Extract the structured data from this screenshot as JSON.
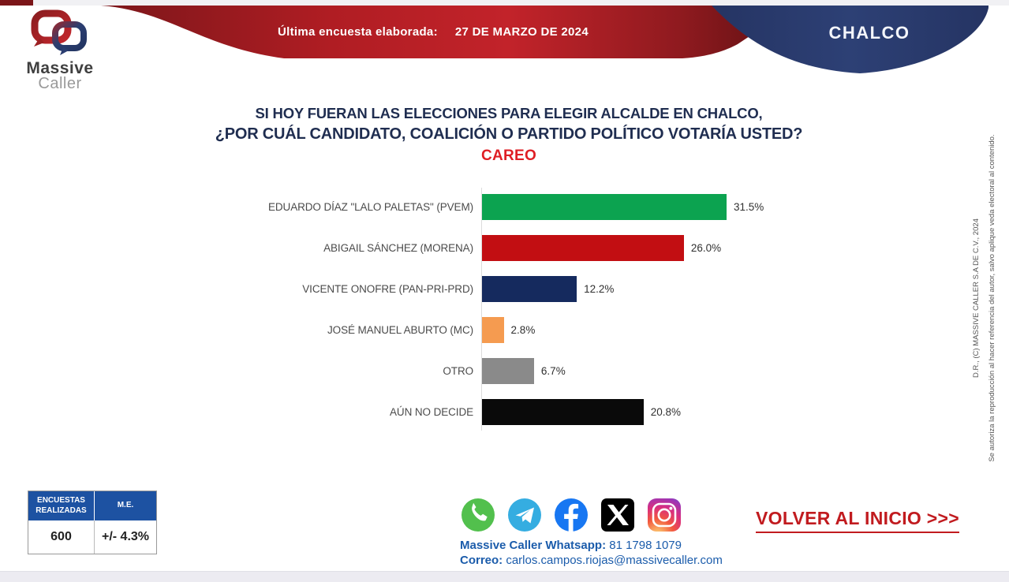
{
  "header": {
    "logo_line1": "Massive",
    "logo_line2": "Caller",
    "banner_label": "Última encuesta elaborada:",
    "banner_date": "27 DE MARZO DE 2024",
    "location": "CHALCO"
  },
  "title": {
    "line1": "SI HOY FUERAN LAS ELECCIONES PARA ELEGIR ALCALDE EN CHALCO,",
    "line2": "¿POR CUÁL CANDIDATO, COALICIÓN O PARTIDO POLÍTICO VOTARÍA USTED?",
    "line3": "CAREO"
  },
  "chart_data": {
    "type": "bar",
    "orientation": "horizontal",
    "title": "CAREO — intención de voto para alcalde en Chalco",
    "categories": [
      "EDUARDO DÍAZ \"LALO PALETAS\" (PVEM)",
      "ABIGAIL SÁNCHEZ (MORENA)",
      "VICENTE ONOFRE (PAN-PRI-PRD)",
      "JOSÉ MANUEL ABURTO (MC)",
      "OTRO",
      "AÚN NO DECIDE"
    ],
    "values": [
      31.5,
      26.0,
      12.2,
      2.8,
      6.7,
      20.8
    ],
    "value_labels": [
      "31.5%",
      "26.0%",
      "12.2%",
      "2.8%",
      "6.7%",
      "20.8%"
    ],
    "colors": [
      "#0ca350",
      "#c20e12",
      "#152a5e",
      "#f59b50",
      "#8a8a8a",
      "#0a0a0a"
    ],
    "xlim": [
      0,
      32
    ],
    "unit": "%",
    "grid": false,
    "legend": false
  },
  "stats_table": {
    "headers": [
      "ENCUESTAS REALIZADAS",
      "M.E."
    ],
    "values": [
      "600",
      "+/- 4.3%"
    ]
  },
  "contact": {
    "icons": [
      "whatsapp-icon",
      "telegram-icon",
      "facebook-icon",
      "x-icon",
      "instagram-icon"
    ],
    "whatsapp_label": "Massive Caller Whatsapp:",
    "whatsapp_number": "81 1798 1079",
    "email_label": "Correo:",
    "email": "carlos.campos.riojas@massivecaller.com"
  },
  "back_link": "VOLVER AL INICIO >>>",
  "copyright": {
    "line1": "D.R., (C) MASSIVE CALLER S.A DE C.V., 2024",
    "line2": "Se autoriza la reproducción al hacer referencia del autor, salvo aplique veda electoral al contenido."
  },
  "colors": {
    "banner_red": "#b52026",
    "banner_navy": "#2a3c6e",
    "title_navy": "#1f2d50",
    "careo_red": "#df1e24",
    "table_header_blue": "#1d52a2",
    "contact_blue": "#1b5cab",
    "back_link_red": "#c11b1f"
  }
}
